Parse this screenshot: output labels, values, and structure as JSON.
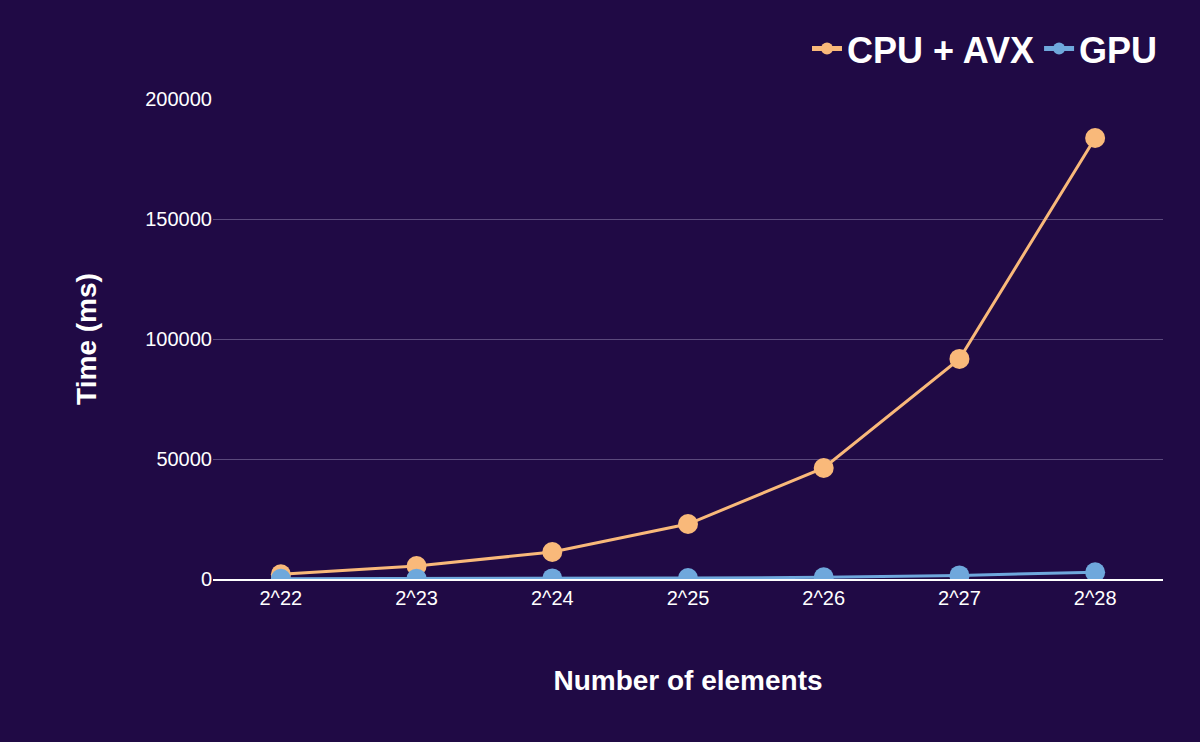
{
  "chart_data": {
    "type": "line",
    "x_label": "Number of elements",
    "y_label": "Time (ms)",
    "categories": [
      "2^22",
      "2^23",
      "2^24",
      "2^25",
      "2^26",
      "2^27",
      "2^28"
    ],
    "series": [
      {
        "name": "CPU + AVX",
        "color": "#f9b97a",
        "marker": "circle",
        "values": [
          2000,
          5400,
          11250,
          22900,
          46250,
          91700,
          183750
        ]
      },
      {
        "name": "GPU",
        "color": "#6fa8dc",
        "marker": "circle",
        "values": [
          100,
          150,
          250,
          400,
          700,
          1500,
          2800
        ]
      }
    ],
    "ylim": [
      0,
      200000
    ],
    "yticks": [
      0,
      50000,
      100000,
      150000,
      200000
    ],
    "grid": true,
    "legend": "top"
  }
}
